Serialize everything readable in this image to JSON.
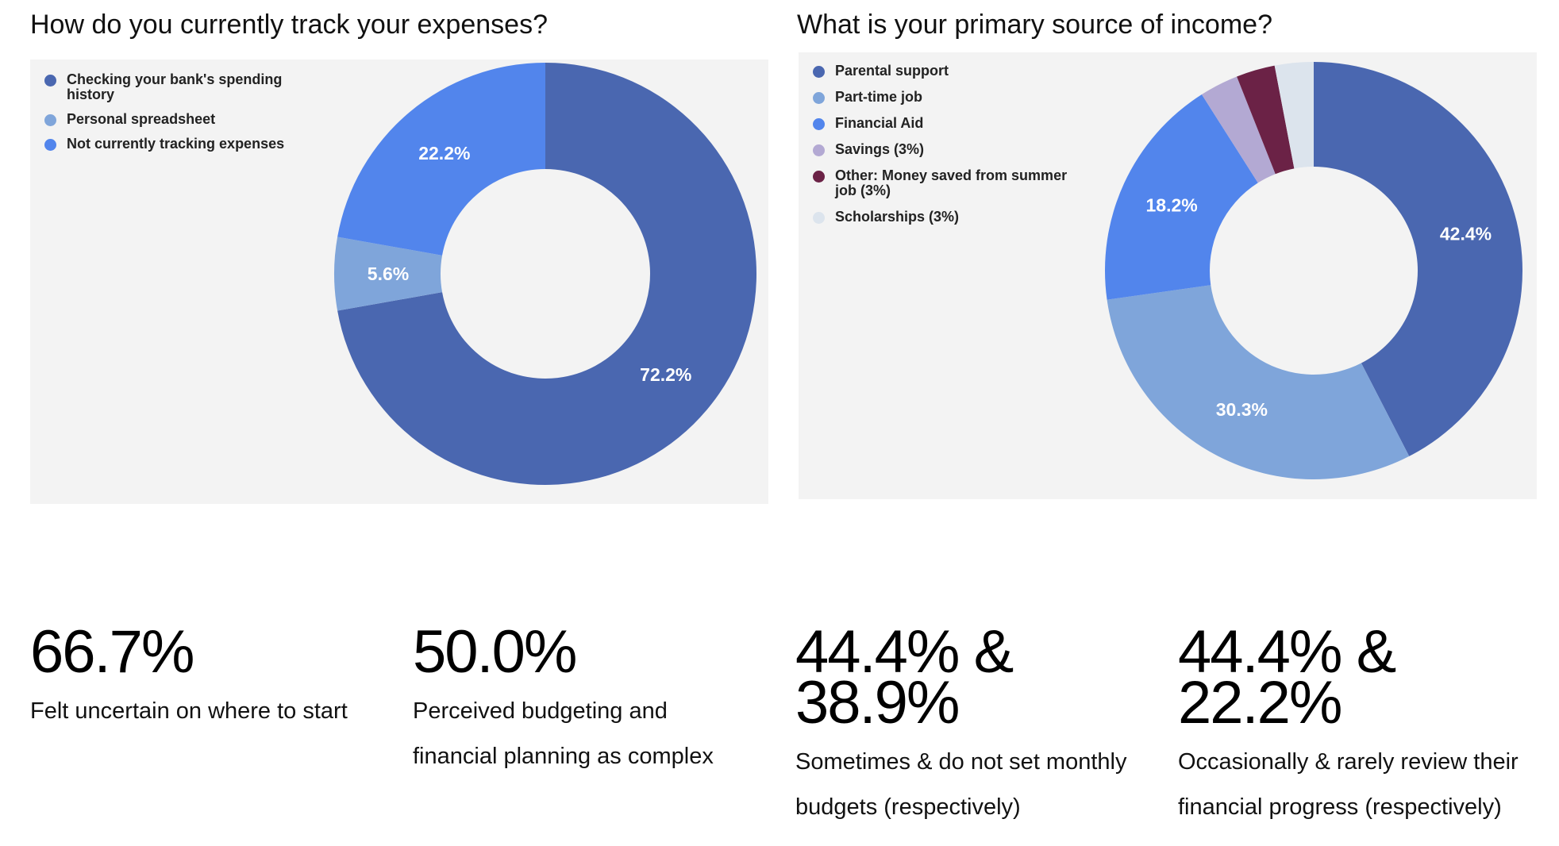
{
  "chart_data": [
    {
      "type": "pie",
      "title": "How do you currently track your expenses?",
      "legend_position": "top-left",
      "series": [
        {
          "name": "Checking your bank's spending history",
          "value": 72.2,
          "label": "72.2%",
          "color": "#4a67b0"
        },
        {
          "name": "Personal spreadsheet",
          "value": 5.6,
          "label": "5.6%",
          "color": "#7fa5da"
        },
        {
          "name": "Not currently tracking expenses",
          "value": 22.2,
          "label": "22.2%",
          "color": "#5285ec"
        }
      ]
    },
    {
      "type": "pie",
      "title": "What is your primary source of income?",
      "legend_position": "top-left",
      "series": [
        {
          "name": "Parental support",
          "value": 42.4,
          "label": "42.4%",
          "color": "#4a67b0"
        },
        {
          "name": "Part-time job",
          "value": 30.3,
          "label": "30.3%",
          "color": "#7fa5da"
        },
        {
          "name": "Financial Aid",
          "value": 18.2,
          "label": "18.2%",
          "color": "#5285ec"
        },
        {
          "name": "Savings (3%)",
          "value": 3.0,
          "label": "",
          "color": "#b3a9d3"
        },
        {
          "name": "Other: Money saved from summer job (3%)",
          "value": 3.0,
          "label": "",
          "color": "#6b2246"
        },
        {
          "name": "Scholarships (3%)",
          "value": 3.0,
          "label": "",
          "color": "#dce4ed"
        }
      ]
    }
  ],
  "stats": [
    {
      "value": "66.7%",
      "description": "Felt uncertain on where to start"
    },
    {
      "value": "50.0%",
      "description": "Perceived budgeting and financial planning as complex"
    },
    {
      "value": "44.4% & 38.9%",
      "description": "Sometimes & do not set monthly budgets (respectively)"
    },
    {
      "value": "44.4% & 22.2%",
      "description": "Occasionally & rarely review their financial progress (respectively)"
    }
  ]
}
